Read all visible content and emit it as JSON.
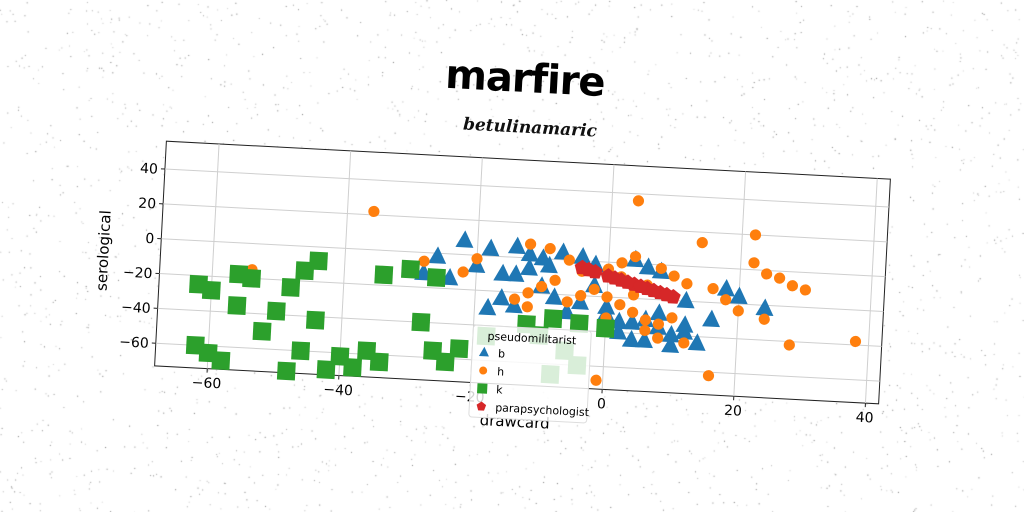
{
  "chart_data": {
    "type": "scatter",
    "title": "marfire",
    "subtitle": "betulinamaric",
    "xlabel": "drawcard",
    "ylabel": "serological",
    "xlim": [
      -68,
      42
    ],
    "ylim": [
      -73,
      56
    ],
    "xticks": [
      -60,
      -40,
      -20,
      0,
      20,
      40
    ],
    "yticks": [
      -60,
      -40,
      -20,
      0,
      20,
      40
    ],
    "xtick_labels": [
      "−60",
      "−40",
      "−20",
      "0",
      "20",
      "40"
    ],
    "ytick_labels": [
      "−60",
      "−40",
      "−20",
      "0",
      "20",
      "40"
    ],
    "grid": true,
    "legend": {
      "title": "pseudomilitarist",
      "placement": "lower-center"
    },
    "series": [
      {
        "name": "b",
        "marker": "triangle",
        "color": "#1f77b4",
        "points": [
          [
            -26,
            -2
          ],
          [
            -22,
            8
          ],
          [
            -18,
            4
          ],
          [
            -14,
            6
          ],
          [
            -12,
            2
          ],
          [
            -10,
            0
          ],
          [
            -7,
            4
          ],
          [
            -4,
            2
          ],
          [
            -2,
            -2
          ],
          [
            -9,
            -4
          ],
          [
            -12,
            -6
          ],
          [
            -16,
            -10
          ],
          [
            -20,
            -6
          ],
          [
            -24,
            -14
          ],
          [
            -10,
            -16
          ],
          [
            -8,
            -22
          ],
          [
            -4,
            -24
          ],
          [
            -6,
            -30
          ],
          [
            0,
            -30
          ],
          [
            2,
            -34
          ],
          [
            4,
            -34
          ],
          [
            6,
            -32
          ],
          [
            8,
            -36
          ],
          [
            10,
            -40
          ],
          [
            12,
            -38
          ],
          [
            2,
            -40
          ],
          [
            4,
            -44
          ],
          [
            6,
            -44
          ],
          [
            10,
            -46
          ],
          [
            14,
            -44
          ],
          [
            12,
            -34
          ],
          [
            16,
            -30
          ],
          [
            8,
            -28
          ],
          [
            12,
            -20
          ],
          [
            4,
            2
          ],
          [
            6,
            -2
          ],
          [
            8,
            -4
          ],
          [
            18,
            -12
          ],
          [
            20,
            -16
          ],
          [
            24,
            -22
          ],
          [
            -28,
            -12
          ],
          [
            -14,
            -10
          ],
          [
            -16,
            -24
          ],
          [
            -14,
            -28
          ],
          [
            -18,
            -30
          ],
          [
            -2,
            -14
          ],
          [
            0,
            -26
          ]
        ]
      },
      {
        "name": "h",
        "marker": "circle",
        "color": "#ff7f0e",
        "points": [
          [
            -36,
            22
          ],
          [
            -54,
            -15
          ],
          [
            -28,
            -5
          ],
          [
            -22,
            -10
          ],
          [
            -20,
            -2
          ],
          [
            -12,
            8
          ],
          [
            -9,
            6
          ],
          [
            -6,
            0
          ],
          [
            -4,
            -6
          ],
          [
            -8,
            -12
          ],
          [
            -10,
            -16
          ],
          [
            -12,
            -20
          ],
          [
            -14,
            -24
          ],
          [
            -12,
            -28
          ],
          [
            -6,
            -24
          ],
          [
            -4,
            -20
          ],
          [
            -2,
            -16
          ],
          [
            0,
            -20
          ],
          [
            2,
            -24
          ],
          [
            0,
            -32
          ],
          [
            4,
            -28
          ],
          [
            6,
            -32
          ],
          [
            8,
            -34
          ],
          [
            10,
            -30
          ],
          [
            6,
            -38
          ],
          [
            8,
            -42
          ],
          [
            12,
            -44
          ],
          [
            4,
            -18
          ],
          [
            6,
            -12
          ],
          [
            2,
            -8
          ],
          [
            0,
            -4
          ],
          [
            2,
            0
          ],
          [
            4,
            4
          ],
          [
            8,
            -2
          ],
          [
            10,
            -6
          ],
          [
            12,
            -10
          ],
          [
            16,
            -12
          ],
          [
            18,
            -18
          ],
          [
            20,
            -24
          ],
          [
            22,
            4
          ],
          [
            24,
            -2
          ],
          [
            26,
            -4
          ],
          [
            28,
            -8
          ],
          [
            30,
            -10
          ],
          [
            22,
            20
          ],
          [
            14,
            14
          ],
          [
            4,
            36
          ],
          [
            16,
            -62
          ],
          [
            -1,
            -68
          ],
          [
            38,
            -38
          ],
          [
            28,
            -42
          ],
          [
            24,
            -28
          ]
        ]
      },
      {
        "name": "k",
        "marker": "square",
        "color": "#2ca02c",
        "points": [
          [
            -62,
            -25
          ],
          [
            -60,
            -28
          ],
          [
            -56,
            -18
          ],
          [
            -54,
            -20
          ],
          [
            -46,
            -14
          ],
          [
            -44,
            -8
          ],
          [
            -48,
            -24
          ],
          [
            -56,
            -36
          ],
          [
            -52,
            -50
          ],
          [
            -50,
            -38
          ],
          [
            -44,
            -42
          ],
          [
            -46,
            -60
          ],
          [
            -40,
            -62
          ],
          [
            -36,
            -58
          ],
          [
            -34,
            -64
          ],
          [
            -38,
            -68
          ],
          [
            -42,
            -70
          ],
          [
            -48,
            -72
          ],
          [
            -58,
            -68
          ],
          [
            -60,
            -64
          ],
          [
            -62,
            -60
          ],
          [
            -34,
            -14
          ],
          [
            -30,
            -10
          ],
          [
            -26,
            -14
          ],
          [
            -28,
            -40
          ],
          [
            -26,
            -56
          ],
          [
            -24,
            -62
          ],
          [
            -22,
            -54
          ],
          [
            -18,
            -46
          ],
          [
            -12,
            -38
          ],
          [
            -8,
            -34
          ],
          [
            -4,
            -36
          ],
          [
            0,
            -38
          ],
          [
            -10,
            -44
          ],
          [
            -6,
            -52
          ],
          [
            -4,
            -60
          ],
          [
            -8,
            -66
          ],
          [
            -2,
            -76
          ]
        ]
      },
      {
        "name": "parapsychologist",
        "marker": "pentagon",
        "color": "#d62728",
        "points": [
          [
            -4,
            -4
          ],
          [
            -2,
            -6
          ],
          [
            0,
            -8
          ],
          [
            2,
            -10
          ],
          [
            4,
            -12
          ],
          [
            6,
            -14
          ],
          [
            8,
            -16
          ],
          [
            10,
            -18
          ],
          [
            -3,
            -5
          ],
          [
            1,
            -9
          ],
          [
            3,
            -11
          ],
          [
            5,
            -13
          ],
          [
            7,
            -15
          ],
          [
            9,
            -17
          ]
        ]
      }
    ]
  },
  "colors": {
    "b": "#1f77b4",
    "h": "#ff7f0e",
    "k": "#2ca02c",
    "parapsychologist": "#d62728"
  }
}
